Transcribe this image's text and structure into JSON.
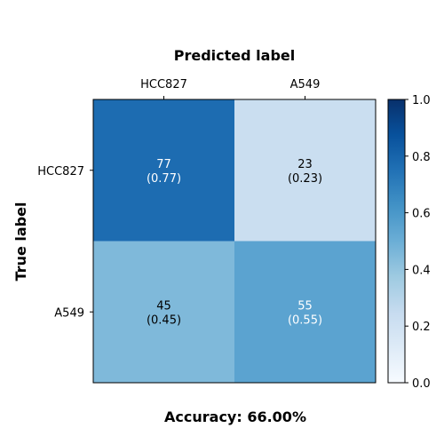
{
  "chart_data": {
    "type": "heatmap",
    "title": "",
    "xlabel": "Predicted label",
    "ylabel": "True label",
    "x_categories": [
      "HCC827",
      "A549"
    ],
    "y_categories": [
      "HCC827",
      "A549"
    ],
    "counts": [
      [
        77,
        23
      ],
      [
        45,
        55
      ]
    ],
    "cell_labels": [
      [
        "77\n(0.77)",
        "23\n(0.23)"
      ],
      [
        "45\n(0.45)",
        "55\n(0.55)"
      ]
    ],
    "normalized": [
      [
        0.77,
        0.23
      ],
      [
        0.45,
        0.55
      ]
    ],
    "colorbar": {
      "range": [
        0,
        1
      ],
      "ticks": [
        "0.0",
        "0.2",
        "0.4",
        "0.6",
        "0.8",
        "1.0"
      ],
      "colormap": "Blues"
    },
    "footer": "Accuracy: 66.00%",
    "x_axis_position": "top"
  }
}
